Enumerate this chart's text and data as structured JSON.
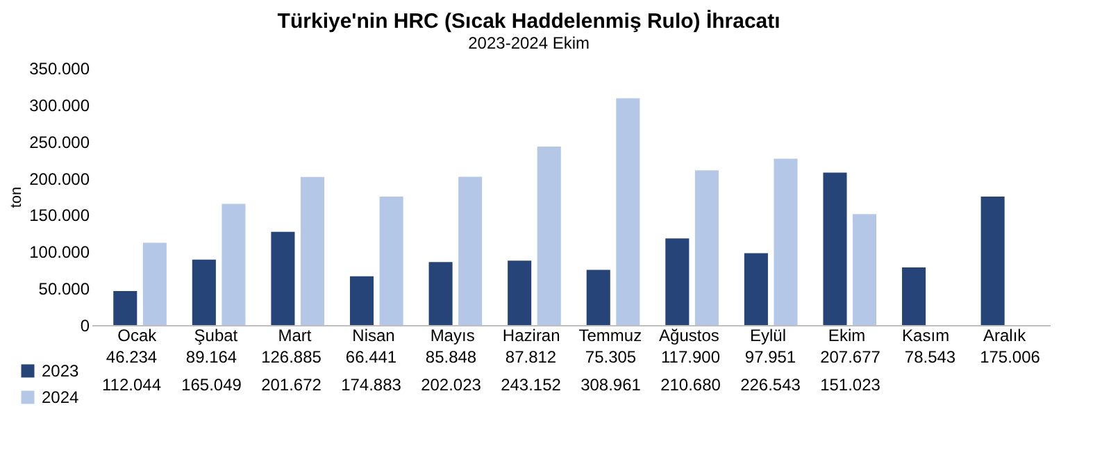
{
  "chart_data": {
    "type": "bar",
    "title": "Türkiye'nin HRC (Sıcak Haddelenmiş Rulo) İhracatı",
    "subtitle": "2023-2024 Ekim",
    "ylabel": "ton",
    "categories": [
      "Ocak",
      "Şubat",
      "Mart",
      "Nisan",
      "Mayıs",
      "Haziran",
      "Temmuz",
      "Ağustos",
      "Eylül",
      "Ekim",
      "Kasım",
      "Aralık"
    ],
    "series": [
      {
        "name": "2023",
        "color": "#264478",
        "values": [
          46234,
          89164,
          126885,
          66441,
          85848,
          87812,
          75305,
          117900,
          97951,
          207677,
          78543,
          175006
        ],
        "value_labels": [
          "46.234",
          "89.164",
          "126.885",
          "66.441",
          "85.848",
          "87.812",
          "75.305",
          "117.900",
          "97.951",
          "207.677",
          "78.543",
          "175.006"
        ]
      },
      {
        "name": "2024",
        "color": "#b4c7e7",
        "values": [
          112044,
          165049,
          201672,
          174883,
          202023,
          243152,
          308961,
          210680,
          226543,
          151023,
          null,
          null
        ],
        "value_labels": [
          "112.044",
          "165.049",
          "201.672",
          "174.883",
          "202.023",
          "243.152",
          "308.961",
          "210.680",
          "226.543",
          "151.023",
          null,
          null
        ]
      }
    ],
    "ylim": [
      0,
      350000
    ],
    "yticks": [
      0,
      {
        "value": 50000,
        "label": "50.000"
      },
      {
        "value": 100000,
        "label": "100.000"
      },
      {
        "value": 150000,
        "label": "150.000"
      },
      {
        "value": 200000,
        "label": "200.000"
      },
      {
        "value": 250000,
        "label": "250.000"
      },
      {
        "value": 300000,
        "label": "300.000"
      },
      {
        "value": 350000,
        "label": "350.000"
      }
    ],
    "grid": false,
    "legend": "bottom left"
  }
}
